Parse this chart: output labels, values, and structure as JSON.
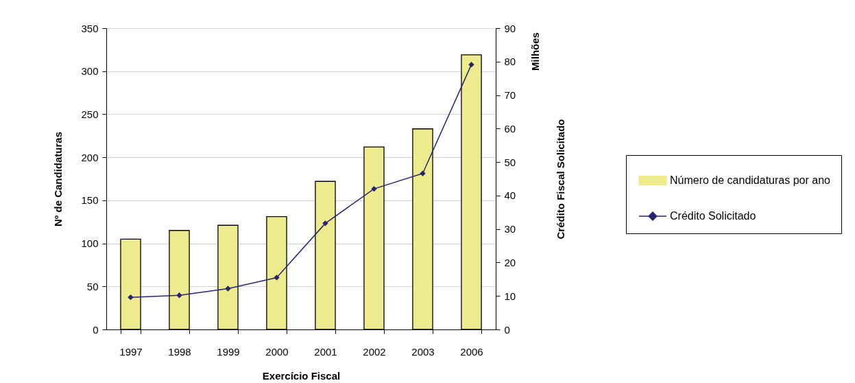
{
  "chart_data": {
    "type": "bar",
    "xlabel": "Exercício Fiscal",
    "ylabel": "Nº de Candidaturas",
    "y2label": "Crédito Fiscal Solicitado",
    "annotations": [
      "Milhões"
    ],
    "categories": [
      "1997",
      "1998",
      "1999",
      "2000",
      "2001",
      "2002",
      "2003",
      "2006"
    ],
    "series": [
      {
        "name": "Número de candidaturas por ano",
        "color": "#eeeb8e",
        "values": [
          105,
          115,
          121,
          131,
          172,
          212,
          233,
          319
        ]
      },
      {
        "name": "Crédito Solicitado",
        "type": "line",
        "axis": "y2",
        "color": "#25256f",
        "values": [
          9.6,
          10.2,
          12.2,
          15.5,
          31.7,
          42.0,
          46.6,
          79.1
        ]
      }
    ],
    "ylim": [
      0,
      350
    ],
    "yticks": [
      0,
      50,
      100,
      150,
      200,
      250,
      300,
      350
    ],
    "y2lim": [
      0,
      90
    ],
    "y2ticks": [
      0,
      10,
      20,
      30,
      40,
      50,
      60,
      70,
      80,
      90
    ],
    "grid": "y",
    "legend": "right",
    "marker": "diamond"
  }
}
